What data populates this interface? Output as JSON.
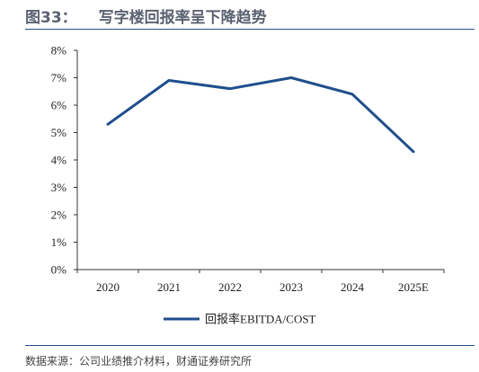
{
  "figure": {
    "label": "图33：",
    "title": "写字楼回报率呈下降趋势",
    "source": "数据来源：公司业绩推介材料，财通证券研究所"
  },
  "chart_data": {
    "type": "line",
    "categories": [
      "2020",
      "2021",
      "2022",
      "2023",
      "2024",
      "2025E"
    ],
    "series": [
      {
        "name": "回报率EBITDA/COST",
        "values": [
          5.3,
          6.9,
          6.6,
          7.0,
          6.4,
          4.3
        ],
        "color": "#1f4e8c"
      }
    ],
    "yticks": [
      "0%",
      "1%",
      "2%",
      "3%",
      "4%",
      "5%",
      "6%",
      "7%",
      "8%"
    ],
    "ylim": [
      0,
      8
    ],
    "y_unit": "%",
    "grid": false,
    "legend_position": "bottom-center"
  }
}
